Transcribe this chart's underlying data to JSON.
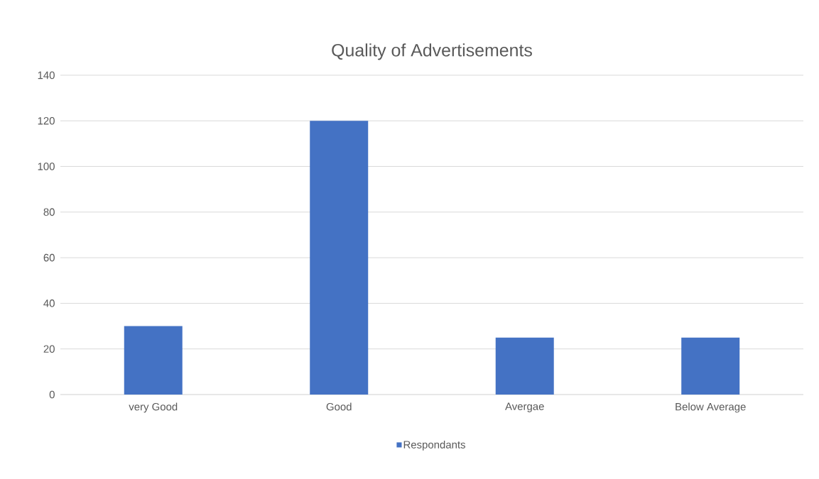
{
  "chart_data": {
    "type": "bar",
    "title": "Quality of Advertisements",
    "categories": [
      "very Good",
      "Good",
      "Avergae",
      "Below Average"
    ],
    "series": [
      {
        "name": "Respondants",
        "color": "#4472c4",
        "values": [
          30,
          120,
          25,
          25
        ]
      }
    ],
    "ylim": [
      0,
      140
    ],
    "yticks": [
      0,
      20,
      40,
      60,
      80,
      100,
      120,
      140
    ],
    "grid": "y",
    "legend": "bottom"
  }
}
